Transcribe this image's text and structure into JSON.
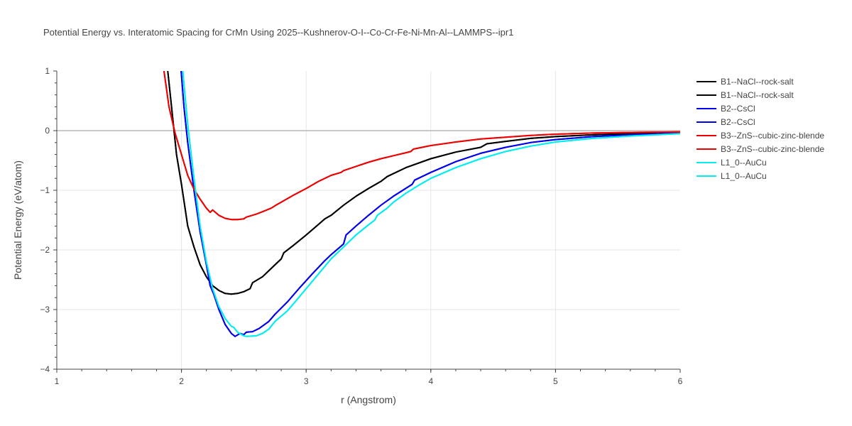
{
  "chart_data": {
    "type": "line",
    "title": "Potential Energy vs. Interatomic Spacing for CrMn Using 2025--Kushnerov-O-I--Co-Cr-Fe-Ni-Mn-Al--LAMMPS--ipr1",
    "xlabel": "r (Angstrom)",
    "ylabel": "Potential Energy (eV/atom)",
    "xlim": [
      1,
      6
    ],
    "ylim": [
      -4,
      1
    ],
    "xticks": [
      "1",
      "2",
      "3",
      "4",
      "5",
      "6"
    ],
    "yticks": [
      "1",
      "0",
      "−1",
      "−2",
      "−3",
      "−4"
    ],
    "grid": true,
    "legend_position": "right",
    "series": [
      {
        "name": "B1--NaCl--rock-salt",
        "color": "#000000",
        "x": [
          1.88,
          1.92,
          1.96,
          2.0,
          2.05,
          2.1,
          2.15,
          2.2,
          2.25,
          2.3,
          2.35,
          2.4,
          2.45,
          2.5,
          2.55,
          2.57,
          2.65,
          2.75,
          2.8,
          2.82,
          2.9,
          3.0,
          3.1,
          3.15,
          3.2,
          3.3,
          3.4,
          3.5,
          3.6,
          3.65,
          3.8,
          4.0,
          4.2,
          4.4,
          4.45,
          4.6,
          4.8,
          5.0,
          5.3,
          5.6,
          6.0
        ],
        "y": [
          1.2,
          0.4,
          -0.4,
          -0.9,
          -1.6,
          -1.95,
          -2.25,
          -2.45,
          -2.6,
          -2.68,
          -2.73,
          -2.74,
          -2.73,
          -2.7,
          -2.65,
          -2.55,
          -2.45,
          -2.25,
          -2.15,
          -2.05,
          -1.92,
          -1.75,
          -1.57,
          -1.48,
          -1.42,
          -1.25,
          -1.1,
          -0.97,
          -0.85,
          -0.77,
          -0.62,
          -0.47,
          -0.36,
          -0.28,
          -0.22,
          -0.18,
          -0.13,
          -0.1,
          -0.07,
          -0.05,
          -0.03
        ]
      },
      {
        "name": "B1--NaCl--rock-salt",
        "color": "#000000",
        "x": [
          1.88,
          1.92,
          1.96,
          2.0,
          2.05,
          2.1,
          2.15,
          2.2,
          2.25,
          2.3,
          2.35,
          2.4,
          2.45,
          2.5,
          2.55,
          2.57,
          2.65,
          2.75,
          2.8,
          2.82,
          2.9,
          3.0,
          3.1,
          3.15,
          3.2,
          3.3,
          3.4,
          3.5,
          3.6,
          3.65,
          3.8,
          4.0,
          4.2,
          4.4,
          4.45,
          4.6,
          4.8,
          5.0,
          5.3,
          5.6,
          6.0
        ],
        "y": [
          1.2,
          0.4,
          -0.4,
          -0.9,
          -1.6,
          -1.95,
          -2.25,
          -2.45,
          -2.6,
          -2.68,
          -2.73,
          -2.74,
          -2.73,
          -2.7,
          -2.65,
          -2.55,
          -2.45,
          -2.25,
          -2.15,
          -2.05,
          -1.92,
          -1.75,
          -1.57,
          -1.48,
          -1.42,
          -1.25,
          -1.1,
          -0.97,
          -0.85,
          -0.77,
          -0.62,
          -0.47,
          -0.36,
          -0.28,
          -0.22,
          -0.18,
          -0.13,
          -0.1,
          -0.07,
          -0.05,
          -0.03
        ]
      },
      {
        "name": "B2--CsCl",
        "color": "#0000ee",
        "x": [
          1.99,
          2.02,
          2.05,
          2.1,
          2.15,
          2.2,
          2.23,
          2.26,
          2.3,
          2.35,
          2.4,
          2.43,
          2.47,
          2.5,
          2.52,
          2.57,
          2.62,
          2.7,
          2.75,
          2.85,
          2.95,
          3.05,
          3.15,
          3.2,
          3.3,
          3.32,
          3.4,
          3.5,
          3.6,
          3.7,
          3.85,
          3.87,
          4.0,
          4.2,
          4.4,
          4.6,
          4.8,
          5.0,
          5.3,
          5.6,
          6.0
        ],
        "y": [
          1.2,
          0.4,
          -0.2,
          -1.0,
          -1.7,
          -2.25,
          -2.6,
          -2.75,
          -3.0,
          -3.25,
          -3.4,
          -3.45,
          -3.4,
          -3.42,
          -3.38,
          -3.37,
          -3.32,
          -3.2,
          -3.08,
          -2.87,
          -2.63,
          -2.4,
          -2.18,
          -2.08,
          -1.9,
          -1.75,
          -1.6,
          -1.42,
          -1.25,
          -1.1,
          -0.9,
          -0.83,
          -0.7,
          -0.52,
          -0.38,
          -0.28,
          -0.2,
          -0.15,
          -0.1,
          -0.07,
          -0.04
        ]
      },
      {
        "name": "B2--CsCl",
        "color": "#0000ee",
        "x": [
          1.99,
          2.02,
          2.05,
          2.1,
          2.15,
          2.2,
          2.23,
          2.26,
          2.3,
          2.35,
          2.4,
          2.43,
          2.47,
          2.5,
          2.52,
          2.57,
          2.62,
          2.7,
          2.75,
          2.85,
          2.95,
          3.05,
          3.15,
          3.2,
          3.3,
          3.32,
          3.4,
          3.5,
          3.6,
          3.7,
          3.85,
          3.87,
          4.0,
          4.2,
          4.4,
          4.6,
          4.8,
          5.0,
          5.3,
          5.6,
          6.0
        ],
        "y": [
          1.2,
          0.4,
          -0.2,
          -1.0,
          -1.7,
          -2.25,
          -2.6,
          -2.75,
          -3.0,
          -3.25,
          -3.4,
          -3.45,
          -3.4,
          -3.42,
          -3.38,
          -3.37,
          -3.32,
          -3.2,
          -3.08,
          -2.87,
          -2.63,
          -2.4,
          -2.18,
          -2.08,
          -1.9,
          -1.75,
          -1.6,
          -1.42,
          -1.25,
          -1.1,
          -0.9,
          -0.83,
          -0.7,
          -0.52,
          -0.38,
          -0.28,
          -0.2,
          -0.15,
          -0.1,
          -0.07,
          -0.04
        ]
      },
      {
        "name": "B3--ZnS--cubic-zinc-blende",
        "color": "#ee0000",
        "x": [
          1.86,
          1.9,
          1.95,
          2.0,
          2.05,
          2.1,
          2.15,
          2.2,
          2.23,
          2.25,
          2.3,
          2.35,
          2.4,
          2.45,
          2.5,
          2.52,
          2.6,
          2.65,
          2.72,
          2.75,
          2.8,
          2.9,
          3.0,
          3.1,
          3.2,
          3.28,
          3.3,
          3.4,
          3.5,
          3.6,
          3.7,
          3.8,
          3.84,
          3.86,
          4.0,
          4.2,
          4.4,
          4.6,
          4.8,
          5.0,
          5.3,
          5.6,
          6.0
        ],
        "y": [
          1.0,
          0.4,
          -0.05,
          -0.4,
          -0.75,
          -0.98,
          -1.15,
          -1.3,
          -1.37,
          -1.33,
          -1.42,
          -1.47,
          -1.49,
          -1.49,
          -1.48,
          -1.45,
          -1.4,
          -1.36,
          -1.3,
          -1.26,
          -1.2,
          -1.08,
          -0.97,
          -0.85,
          -0.75,
          -0.7,
          -0.67,
          -0.6,
          -0.53,
          -0.47,
          -0.42,
          -0.37,
          -0.35,
          -0.31,
          -0.25,
          -0.19,
          -0.14,
          -0.11,
          -0.08,
          -0.06,
          -0.04,
          -0.03,
          -0.02
        ]
      },
      {
        "name": "B3--ZnS--cubic-zinc-blende",
        "color": "#ee0000",
        "x": [
          1.86,
          1.9,
          1.95,
          2.0,
          2.05,
          2.1,
          2.15,
          2.2,
          2.23,
          2.25,
          2.3,
          2.35,
          2.4,
          2.45,
          2.5,
          2.52,
          2.6,
          2.65,
          2.72,
          2.75,
          2.8,
          2.9,
          3.0,
          3.1,
          3.2,
          3.28,
          3.3,
          3.4,
          3.5,
          3.6,
          3.7,
          3.8,
          3.84,
          3.86,
          4.0,
          4.2,
          4.4,
          4.6,
          4.8,
          5.0,
          5.3,
          5.6,
          6.0
        ],
        "y": [
          1.0,
          0.4,
          -0.05,
          -0.4,
          -0.75,
          -0.98,
          -1.15,
          -1.3,
          -1.37,
          -1.33,
          -1.42,
          -1.47,
          -1.49,
          -1.49,
          -1.48,
          -1.45,
          -1.4,
          -1.36,
          -1.3,
          -1.26,
          -1.2,
          -1.08,
          -0.97,
          -0.85,
          -0.75,
          -0.7,
          -0.67,
          -0.6,
          -0.53,
          -0.47,
          -0.42,
          -0.37,
          -0.35,
          -0.31,
          -0.25,
          -0.19,
          -0.14,
          -0.11,
          -0.08,
          -0.06,
          -0.04,
          -0.03,
          -0.02
        ]
      },
      {
        "name": "L1_0--AuCu",
        "color": "#00eeee",
        "x": [
          2.01,
          2.05,
          2.1,
          2.15,
          2.2,
          2.25,
          2.3,
          2.35,
          2.4,
          2.42,
          2.45,
          2.5,
          2.52,
          2.6,
          2.65,
          2.7,
          2.75,
          2.85,
          2.9,
          3.0,
          3.1,
          3.2,
          3.3,
          3.4,
          3.5,
          3.55,
          3.57,
          3.65,
          3.7,
          3.8,
          3.9,
          4.0,
          4.2,
          4.4,
          4.6,
          4.8,
          5.0,
          5.3,
          5.6,
          6.0
        ],
        "y": [
          1.0,
          0.1,
          -0.8,
          -1.6,
          -2.2,
          -2.65,
          -2.95,
          -3.15,
          -3.28,
          -3.3,
          -3.38,
          -3.44,
          -3.45,
          -3.44,
          -3.4,
          -3.33,
          -3.2,
          -3.02,
          -2.9,
          -2.65,
          -2.4,
          -2.15,
          -1.95,
          -1.75,
          -1.58,
          -1.5,
          -1.42,
          -1.3,
          -1.2,
          -1.05,
          -0.92,
          -0.8,
          -0.62,
          -0.47,
          -0.35,
          -0.26,
          -0.19,
          -0.13,
          -0.09,
          -0.05
        ]
      },
      {
        "name": "L1_0--AuCu",
        "color": "#00eeee",
        "x": [
          2.01,
          2.05,
          2.1,
          2.15,
          2.2,
          2.25,
          2.3,
          2.35,
          2.4,
          2.42,
          2.45,
          2.5,
          2.52,
          2.6,
          2.65,
          2.7,
          2.75,
          2.85,
          2.9,
          3.0,
          3.1,
          3.2,
          3.3,
          3.4,
          3.5,
          3.55,
          3.57,
          3.65,
          3.7,
          3.8,
          3.9,
          4.0,
          4.2,
          4.4,
          4.6,
          4.8,
          5.0,
          5.3,
          5.6,
          6.0
        ],
        "y": [
          1.0,
          0.1,
          -0.8,
          -1.6,
          -2.2,
          -2.65,
          -2.95,
          -3.15,
          -3.28,
          -3.3,
          -3.38,
          -3.44,
          -3.45,
          -3.44,
          -3.4,
          -3.33,
          -3.2,
          -3.02,
          -2.9,
          -2.65,
          -2.4,
          -2.15,
          -1.95,
          -1.75,
          -1.58,
          -1.5,
          -1.42,
          -1.3,
          -1.2,
          -1.05,
          -0.92,
          -0.8,
          -0.62,
          -0.47,
          -0.35,
          -0.26,
          -0.19,
          -0.13,
          -0.09,
          -0.05
        ]
      }
    ]
  }
}
